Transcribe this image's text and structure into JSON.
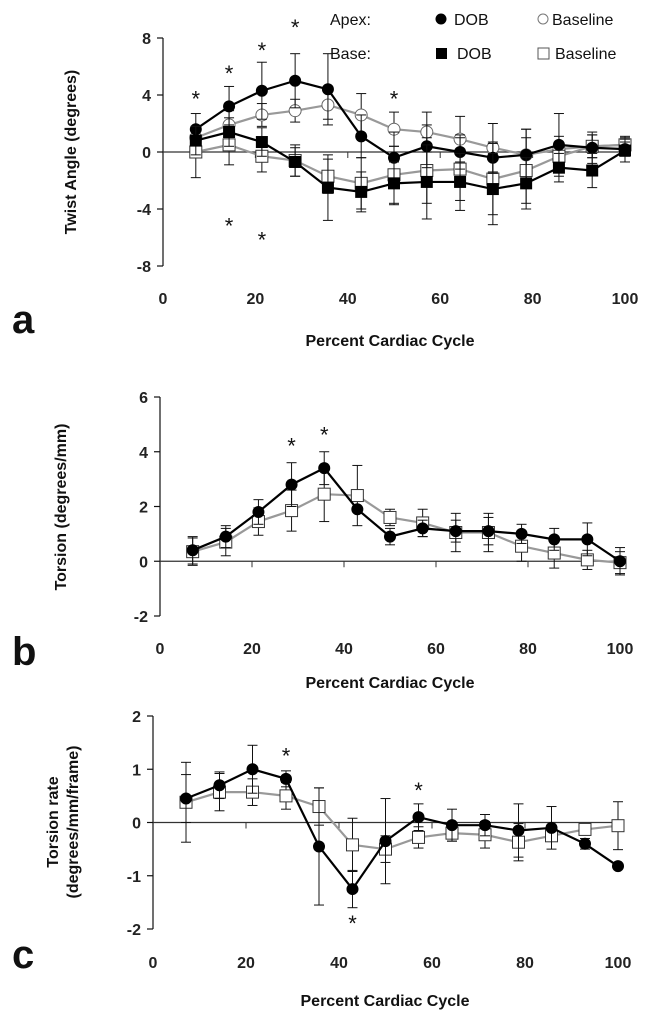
{
  "chart_data": [
    {
      "type": "line",
      "panel_label": "a",
      "xlabel": "Percent Cardiac Cycle",
      "ylabel": "Twist Angle (degrees)",
      "xlim": [
        0,
        100
      ],
      "ylim": [
        -8,
        8
      ],
      "xticks": [
        0,
        20,
        40,
        60,
        80,
        100
      ],
      "yticks": [
        -8,
        -4,
        0,
        4,
        8
      ],
      "legend": {
        "position": "top-right",
        "row1": "Apex:",
        "row2": "Base:",
        "dob": "DOB",
        "baseline": "Baseline"
      },
      "x": [
        7.1,
        14.3,
        21.4,
        28.6,
        35.7,
        42.9,
        50,
        57.1,
        64.3,
        71.4,
        78.6,
        85.7,
        92.9,
        100
      ],
      "series": [
        {
          "name": "Apex Baseline",
          "marker": "open-circle",
          "color": "#999999",
          "values": [
            1.0,
            1.9,
            2.6,
            2.9,
            3.3,
            2.6,
            1.6,
            1.4,
            0.9,
            0.3,
            -0.2,
            0.2,
            0.4,
            0.5
          ],
          "error": [
            0.8,
            1.0,
            0.8,
            0.8,
            1.0,
            1.5,
            1.2,
            1.4,
            1.6,
            1.7,
            1.8,
            0.9,
            0.8,
            0.6
          ]
        },
        {
          "name": "Base Baseline",
          "marker": "open-square",
          "color": "#999999",
          "values": [
            0.0,
            0.5,
            -0.3,
            -0.6,
            -1.7,
            -2.2,
            -1.6,
            -1.3,
            -1.2,
            -1.9,
            -1.3,
            -0.3,
            0.4,
            0.5
          ],
          "error": [
            1.8,
            1.4,
            1.1,
            1.1,
            1.2,
            1.8,
            2.0,
            2.3,
            2.2,
            2.5,
            2.3,
            0.8,
            0.8,
            0.5
          ]
        },
        {
          "name": "Apex DOB",
          "marker": "filled-circle",
          "color": "#000000",
          "values": [
            1.6,
            3.2,
            4.3,
            5.0,
            4.4,
            1.1,
            -0.4,
            0.4,
            0.0,
            -0.4,
            -0.2,
            0.5,
            0.3,
            0.2
          ],
          "error": [
            1.1,
            1.4,
            2.0,
            1.9,
            2.5,
            1.5,
            1.8,
            1.5,
            1.2,
            1.1,
            1.8,
            2.2,
            1.1,
            0.5
          ]
        },
        {
          "name": "Base DOB",
          "marker": "filled-square",
          "color": "#000000",
          "values": [
            0.8,
            1.4,
            0.7,
            -0.7,
            -2.5,
            -2.8,
            -2.2,
            -2.1,
            -2.1,
            -2.6,
            -2.2,
            -1.1,
            -1.3,
            0.1
          ],
          "error": [
            1.0,
            1.0,
            1.0,
            1.0,
            2.3,
            1.4,
            1.5,
            2.6,
            2.0,
            2.5,
            1.8,
            1.0,
            1.2,
            0.8
          ]
        }
      ],
      "annotations": [
        {
          "text": "*",
          "x": 7.1,
          "y": 3.9
        },
        {
          "text": "*",
          "x": 14.3,
          "y": 5.7
        },
        {
          "text": "*",
          "x": 21.4,
          "y": 7.3
        },
        {
          "text": "*",
          "x": 28.6,
          "y": 8.9
        },
        {
          "text": "*",
          "x": 50,
          "y": 3.9
        },
        {
          "text": "*",
          "x": 14.3,
          "y": -5.0
        },
        {
          "text": "*",
          "x": 21.4,
          "y": -6.0
        }
      ]
    },
    {
      "type": "line",
      "panel_label": "b",
      "xlabel": "Percent Cardiac Cycle",
      "ylabel": "Torsion (degrees/mm)",
      "xlim": [
        0,
        100
      ],
      "ylim": [
        -2,
        6
      ],
      "xticks": [
        0,
        20,
        40,
        60,
        80,
        100
      ],
      "yticks": [
        -2,
        0,
        2,
        4,
        6
      ],
      "x": [
        7.1,
        14.3,
        21.4,
        28.6,
        35.7,
        42.9,
        50,
        57.1,
        64.3,
        71.4,
        78.6,
        85.7,
        92.9,
        100
      ],
      "series": [
        {
          "name": "Baseline",
          "marker": "open-square",
          "color": "#999999",
          "values": [
            0.35,
            0.7,
            1.45,
            1.85,
            2.45,
            2.4,
            1.6,
            1.4,
            1.05,
            1.05,
            0.55,
            0.3,
            0.05,
            -0.05
          ],
          "error": [
            0.5,
            0.5,
            0.5,
            0.75,
            1.0,
            1.1,
            0.3,
            0.5,
            0.7,
            0.7,
            0.55,
            0.55,
            0.35,
            0.4
          ]
        },
        {
          "name": "DOB",
          "marker": "filled-circle",
          "color": "#000000",
          "values": [
            0.4,
            0.9,
            1.8,
            2.8,
            3.4,
            1.9,
            0.9,
            1.2,
            1.1,
            1.1,
            1.0,
            0.8,
            0.8,
            0.0
          ],
          "error": [
            0.5,
            0.4,
            0.45,
            0.8,
            0.6,
            0.1,
            0.3,
            0.3,
            0.4,
            0.5,
            0.35,
            0.4,
            0.6,
            0.5
          ]
        }
      ],
      "annotations": [
        {
          "text": "*",
          "x": 28.6,
          "y": 4.3
        },
        {
          "text": "*",
          "x": 35.7,
          "y": 4.7
        }
      ]
    },
    {
      "type": "line",
      "panel_label": "c",
      "xlabel": "Percent Cardiac Cycle",
      "ylabel": [
        "Torsion rate",
        "(degrees/mm/frame)"
      ],
      "xlim": [
        0,
        100
      ],
      "ylim": [
        -2,
        2
      ],
      "xticks": [
        0,
        20,
        40,
        60,
        80,
        100
      ],
      "yticks": [
        -2,
        -1,
        0,
        1,
        2
      ],
      "x": [
        7.1,
        14.3,
        21.4,
        28.6,
        35.7,
        42.9,
        50,
        57.1,
        64.3,
        71.4,
        78.6,
        85.7,
        92.9,
        100
      ],
      "series": [
        {
          "name": "Baseline",
          "marker": "open-square",
          "color": "#999999",
          "values": [
            0.38,
            0.57,
            0.57,
            0.5,
            0.3,
            -0.42,
            -0.5,
            -0.28,
            -0.2,
            -0.23,
            -0.37,
            -0.25,
            -0.13,
            -0.06
          ],
          "error": [
            0.75,
            0.35,
            0.25,
            0.25,
            0.35,
            0.5,
            0.25,
            0.2,
            0.15,
            0.25,
            0.35,
            0.1,
            0.1,
            0.45
          ]
        },
        {
          "name": "DOB",
          "marker": "filled-circle",
          "color": "#000000",
          "values": [
            0.45,
            0.7,
            1.0,
            0.82,
            -0.45,
            -1.25,
            -0.35,
            0.1,
            -0.05,
            -0.05,
            -0.15,
            -0.1,
            -0.4,
            -0.82
          ],
          "error": [
            0.45,
            0.25,
            0.45,
            0.15,
            1.1,
            0.35,
            0.8,
            0.25,
            0.3,
            0.2,
            0.5,
            0.4,
            0.1,
            0.05
          ]
        }
      ],
      "annotations": [
        {
          "text": "*",
          "x": 28.6,
          "y": 1.3
        },
        {
          "text": "*",
          "x": 57.1,
          "y": 0.65
        },
        {
          "text": "*",
          "x": 42.9,
          "y": -1.85
        }
      ]
    }
  ]
}
